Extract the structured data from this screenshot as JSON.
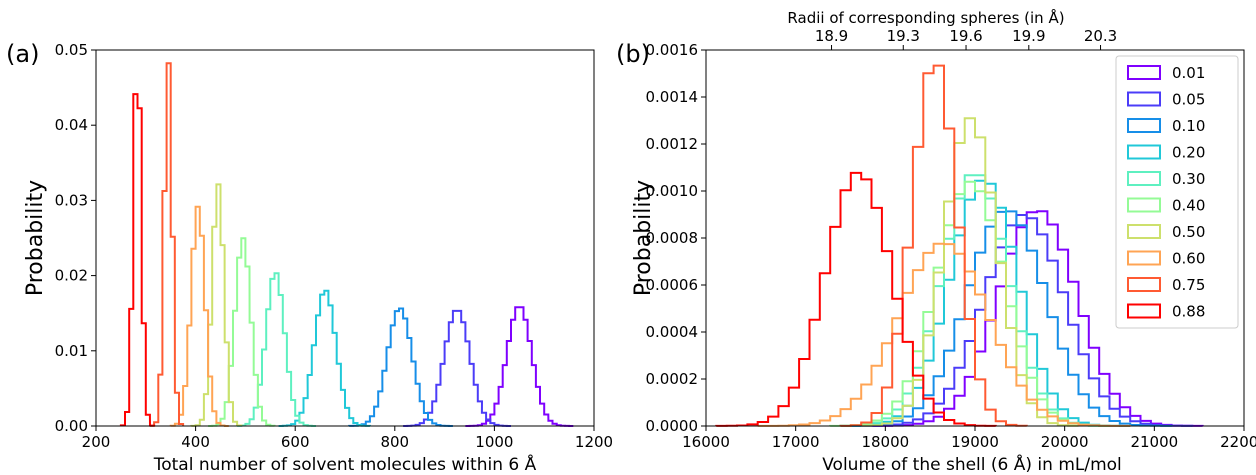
{
  "chart_data": [
    {
      "panel_label": "(a)",
      "type": "line",
      "step": true,
      "xlabel": "Total number of solvent molecules within 6 Å",
      "ylabel": "Probability",
      "xlim": [
        200,
        1200
      ],
      "ylim": [
        0,
        0.05
      ],
      "xticks": [
        "200",
        "400",
        "600",
        "800",
        "1000",
        "1200"
      ],
      "yticks": [
        "0.00",
        "0.01",
        "0.02",
        "0.03",
        "0.04",
        "0.05"
      ],
      "grid": false,
      "series": [
        {
          "name": "0.01",
          "color": "#7f00ff",
          "mean": 1050,
          "sd": 25,
          "peak": 0.016
        },
        {
          "name": "0.05",
          "color": "#4b3cf8",
          "mean": 925,
          "sd": 26,
          "peak": 0.0155
        },
        {
          "name": "0.10",
          "color": "#168ee8",
          "mean": 810,
          "sd": 25,
          "peak": 0.0157
        },
        {
          "name": "0.20",
          "color": "#20c8d8",
          "mean": 660,
          "sd": 22,
          "peak": 0.0181
        },
        {
          "name": "0.30",
          "color": "#5ef0c0",
          "mean": 560,
          "sd": 19,
          "peak": 0.0205
        },
        {
          "name": "0.40",
          "color": "#94fb96",
          "mean": 495,
          "sd": 16,
          "peak": 0.025
        },
        {
          "name": "0.50",
          "color": "#cde06c",
          "mean": 445,
          "sd": 12,
          "peak": 0.0322
        },
        {
          "name": "0.60",
          "color": "#ffa454",
          "mean": 405,
          "sd": 14,
          "peak": 0.0292
        },
        {
          "name": "0.75",
          "color": "#ff5a32",
          "mean": 345,
          "sd": 8,
          "peak": 0.0485
        },
        {
          "name": "0.88",
          "color": "#ff0000",
          "mean": 283,
          "sd": 8,
          "peak": 0.0495
        }
      ]
    },
    {
      "panel_label": "(b)",
      "type": "line",
      "step": true,
      "xlabel": "Volume of the shell (6 Å) in mL/mol",
      "ylabel": "Probability",
      "top_axis_label": "Radii of corresponding spheres (in Å)",
      "top_ticks": [
        "18.9",
        "19.3",
        "19.6",
        "19.9",
        "20.3"
      ],
      "top_tick_positions": [
        17400,
        18200,
        18900,
        19600,
        20400
      ],
      "xlim": [
        16000,
        22000
      ],
      "ylim": [
        0,
        0.0016
      ],
      "xticks": [
        "16000",
        "17000",
        "18000",
        "19000",
        "20000",
        "21000",
        "22000"
      ],
      "yticks": [
        "0.0000",
        "0.0002",
        "0.0004",
        "0.0006",
        "0.0008",
        "0.0010",
        "0.0012",
        "0.0014",
        "0.0016"
      ],
      "legend_position": "top-right",
      "grid": false,
      "series": [
        {
          "name": "0.01",
          "color": "#7f00ff",
          "mean": 19700,
          "sd": 440,
          "peak": 0.00092
        },
        {
          "name": "0.05",
          "color": "#4b3cf8",
          "mean": 19550,
          "sd": 450,
          "peak": 0.0009
        },
        {
          "name": "0.10",
          "color": "#168ee8",
          "mean": 19350,
          "sd": 440,
          "peak": 0.00092
        },
        {
          "name": "0.20",
          "color": "#20c8d8",
          "mean": 19100,
          "sd": 380,
          "peak": 0.00105
        },
        {
          "name": "0.30",
          "color": "#5ef0c0",
          "mean": 19000,
          "sd": 370,
          "peak": 0.00108
        },
        {
          "name": "0.40",
          "color": "#94fb96",
          "mean": 18950,
          "sd": 380,
          "peak": 0.00104
        },
        {
          "name": "0.50",
          "color": "#cde06c",
          "mean": 18950,
          "sd": 300,
          "peak": 0.00131
        },
        {
          "name": "0.60",
          "color": "#ffa454",
          "mean": 18650,
          "sd": 500,
          "peak": 0.00078
        },
        {
          "name": "0.75",
          "color": "#ff5a32",
          "mean": 18550,
          "sd": 250,
          "peak": 0.00156
        },
        {
          "name": "0.88",
          "color": "#ff0000",
          "mean": 17700,
          "sd": 370,
          "peak": 0.00108
        }
      ]
    }
  ]
}
